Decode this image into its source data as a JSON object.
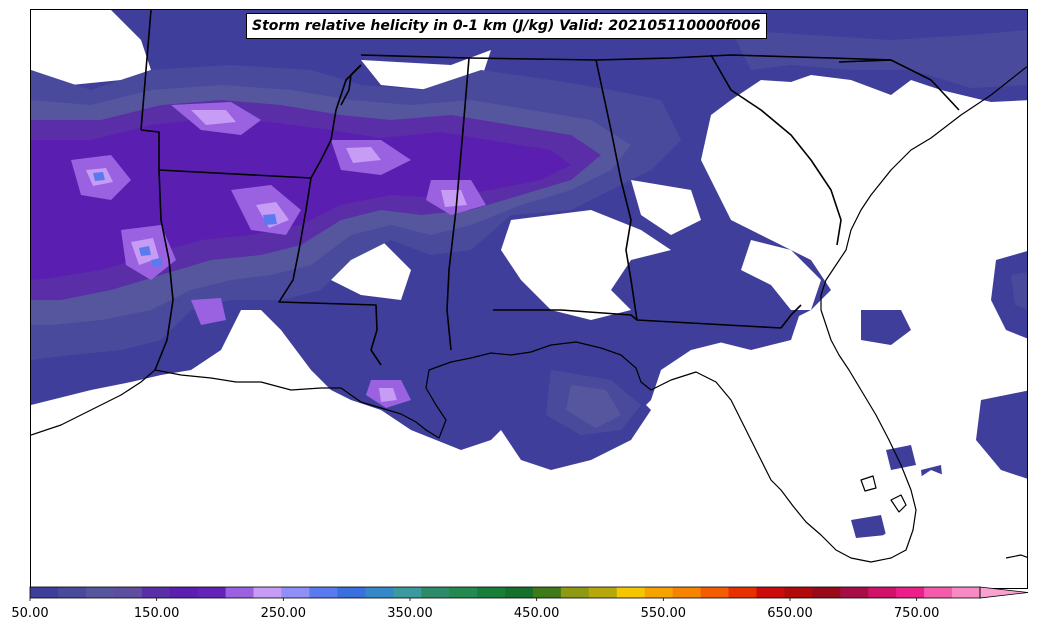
{
  "title": "Storm relative helicity in 0-1 km (J/kg) Valid: 202105110000f006",
  "colorbar": {
    "tick_labels": [
      "50.00",
      "150.00",
      "250.00",
      "350.00",
      "450.00",
      "550.00",
      "650.00",
      "750.00"
    ],
    "levels_min": 50,
    "levels_max": 800,
    "level_step": 25,
    "extend": "max",
    "colors": [
      "#3f3f9b",
      "#4a4a9c",
      "#56569e",
      "#5f4ea0",
      "#5a2ea6",
      "#5a1fb0",
      "#6422b8",
      "#9a62e0",
      "#c69cf5",
      "#8f8ff8",
      "#5a7bf0",
      "#3a6fe0",
      "#3588c7",
      "#3a9aa0",
      "#2e8b6a",
      "#228a50",
      "#197d3a",
      "#14702a",
      "#3e7a1a",
      "#8d9a12",
      "#b6a80a",
      "#f3c600",
      "#f6a300",
      "#f78400",
      "#f45c00",
      "#e63000",
      "#cc0b0b",
      "#b20a0a",
      "#960a1a",
      "#a80e46",
      "#d0126a",
      "#ec1e8a",
      "#f45cab",
      "#f88ac3"
    ]
  },
  "map": {
    "features": [
      "state-borders",
      "coastline",
      "srh-contours"
    ],
    "region": "Southeastern United States"
  }
}
